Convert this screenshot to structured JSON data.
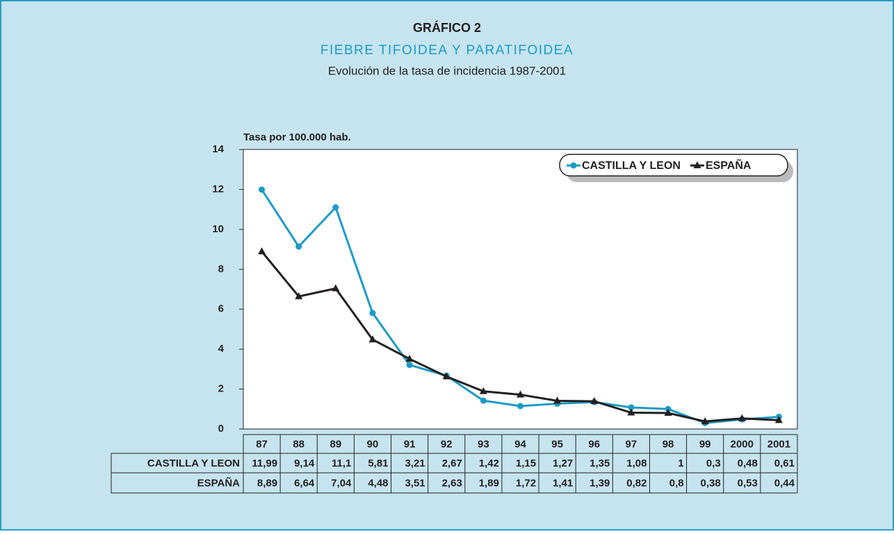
{
  "chart_data": {
    "type": "line",
    "title": "GRÁFICO 2",
    "subtitle": "FIEBRE TIFOIDEA Y PARATIFOIDEA",
    "description": "Evolución de la tasa de incidencia 1987-2001",
    "y_label": "Tasa por 100.000 hab.",
    "categories": [
      "87",
      "88",
      "89",
      "90",
      "91",
      "92",
      "93",
      "94",
      "95",
      "96",
      "97",
      "98",
      "99",
      "2000",
      "2001"
    ],
    "series": [
      {
        "name": "CASTILLA Y LEON",
        "color": "#1b9ac7",
        "marker": "circle",
        "values": [
          11.99,
          9.14,
          11.1,
          5.81,
          3.21,
          2.67,
          1.42,
          1.15,
          1.27,
          1.35,
          1.08,
          1,
          0.3,
          0.48,
          0.61
        ],
        "value_labels": [
          "11,99",
          "9,14",
          "11,1",
          "5,81",
          "3,21",
          "2,67",
          "1,42",
          "1,15",
          "1,27",
          "1,35",
          "1,08",
          "1",
          "0,3",
          "0,48",
          "0,61"
        ]
      },
      {
        "name": "ESPAÑA",
        "color": "#231f20",
        "marker": "triangle",
        "values": [
          8.89,
          6.64,
          7.04,
          4.48,
          3.51,
          2.63,
          1.89,
          1.72,
          1.41,
          1.39,
          0.82,
          0.8,
          0.38,
          0.53,
          0.44
        ],
        "value_labels": [
          "8,89",
          "6,64",
          "7,04",
          "4,48",
          "3,51",
          "2,63",
          "1,89",
          "1,72",
          "1,41",
          "1,39",
          "0,82",
          "0,8",
          "0,38",
          "0,53",
          "0,44"
        ]
      }
    ],
    "ylim": [
      0,
      14
    ],
    "yticks": [
      0,
      2,
      4,
      6,
      8,
      10,
      12,
      14
    ],
    "legend": "top-right",
    "grid": false
  }
}
